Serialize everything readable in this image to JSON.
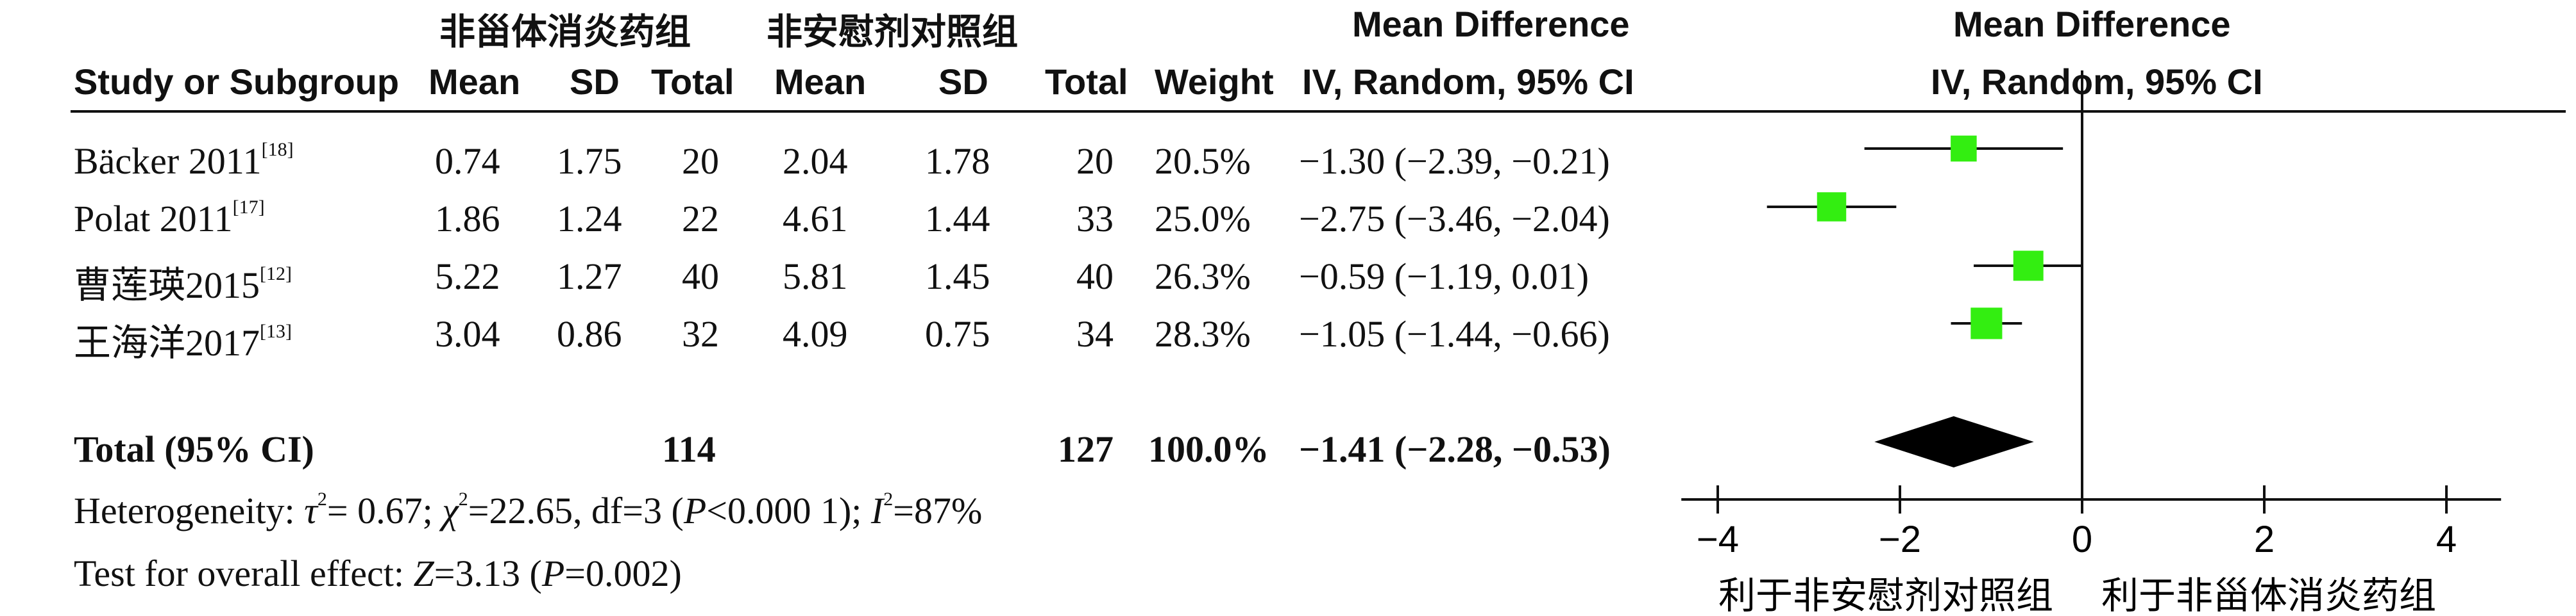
{
  "group_headers": {
    "experimental": "非甾体消炎药组",
    "control": "非安慰剂对照组",
    "effect_measure": "Mean Difference"
  },
  "columns": {
    "study": "Study or Subgroup",
    "mean_exp": "Mean",
    "sd_exp": "SD",
    "total_exp": "Total",
    "mean_ctl": "Mean",
    "sd_ctl": "SD",
    "total_ctl": "Total",
    "weight": "Weight",
    "ci": "IV, Random, 95% CI",
    "plot_title": "Mean Difference",
    "plot_subtitle": "IV, Random, 95% CI"
  },
  "studies": [
    {
      "name": "Bäcker 2011",
      "ref": "[18]",
      "mean_exp": "0.74",
      "sd_exp": "1.75",
      "total_exp": "20",
      "mean_ctl": "2.04",
      "sd_ctl": "1.78",
      "total_ctl": "20",
      "weight": "20.5%",
      "ci_text": "−1.30 (−2.39, −0.21)"
    },
    {
      "name": "Polat 2011",
      "ref": "[17]",
      "mean_exp": "1.86",
      "sd_exp": "1.24",
      "total_exp": "22",
      "mean_ctl": "4.61",
      "sd_ctl": "1.44",
      "total_ctl": "33",
      "weight": "25.0%",
      "ci_text": "−2.75 (−3.46, −2.04)"
    },
    {
      "name": "曹莲瑛2015",
      "ref": "[12]",
      "mean_exp": "5.22",
      "sd_exp": "1.27",
      "total_exp": "40",
      "mean_ctl": "5.81",
      "sd_ctl": "1.45",
      "total_ctl": "40",
      "weight": "26.3%",
      "ci_text": "−0.59 (−1.19, 0.01)"
    },
    {
      "name": "王海洋2017",
      "ref": "[13]",
      "mean_exp": "3.04",
      "sd_exp": "0.86",
      "total_exp": "32",
      "mean_ctl": "4.09",
      "sd_ctl": "0.75",
      "total_ctl": "34",
      "weight": "28.3%",
      "ci_text": "−1.05 (−1.44, −0.66)"
    }
  ],
  "total": {
    "label": "Total (95% CI)",
    "total_exp": "114",
    "total_ctl": "127",
    "weight": "100.0%",
    "ci_text": "−1.41 (−2.28, −0.53)"
  },
  "heterogeneity": {
    "prefix": "Heterogeneity: ",
    "tau_sym": "τ",
    "tau_val": "= 0.67; ",
    "chi_sym": "χ",
    "chi_val": "=22.65, df=3 (",
    "p_sym": "P",
    "p_val": "<0.000 1); ",
    "i_sym": "I",
    "i_val": "=87%",
    "sq": "2"
  },
  "overall": {
    "prefix": "Test for overall effect: ",
    "z_sym": "Z",
    "z_val": "=3.13 (",
    "p_sym": "P",
    "p_val": "=0.002)"
  },
  "chart_data": {
    "type": "forest",
    "title": "Mean Difference",
    "subtitle": "IV, Random, 95% CI",
    "xlim": [
      -4.4,
      4.6
    ],
    "xticks": [
      -4,
      -2,
      0,
      2,
      4
    ],
    "xtick_labels": [
      "−4",
      "−2",
      "0",
      "2",
      "4"
    ],
    "favours_left": "利于非安慰剂对照组",
    "favours_right": "利于非甾体消炎药组",
    "marker_color": "#33ee11",
    "diamond_color": "#000000",
    "series": [
      {
        "md": -1.3,
        "lo": -2.39,
        "hi": -0.21,
        "weight": 20.5
      },
      {
        "md": -2.75,
        "lo": -3.46,
        "hi": -2.04,
        "weight": 25.0
      },
      {
        "md": -0.59,
        "lo": -1.19,
        "hi": 0.01,
        "weight": 26.3
      },
      {
        "md": -1.05,
        "lo": -1.44,
        "hi": -0.66,
        "weight": 28.3
      }
    ],
    "pooled": {
      "md": -1.41,
      "lo": -2.28,
      "hi": -0.53
    }
  }
}
